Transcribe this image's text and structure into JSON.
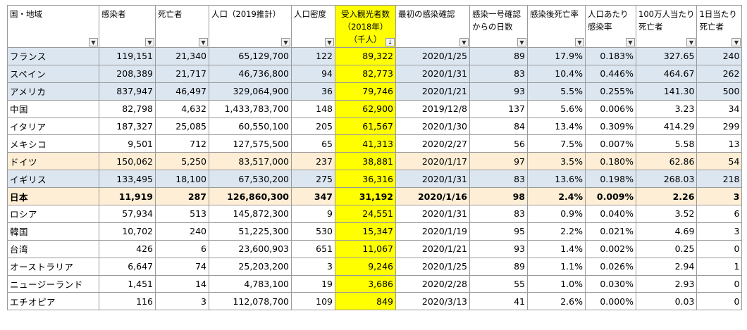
{
  "headers": [
    {
      "label": "国・地域",
      "filter": "▼"
    },
    {
      "label": "感染者",
      "filter": "▼"
    },
    {
      "label": "死亡者",
      "filter": "▼"
    },
    {
      "label": "人口（2019推計）",
      "filter": "▼"
    },
    {
      "label": "人口密度",
      "filter": "▼"
    },
    {
      "label": "受入観光者数\n（2018年）\n（千人）",
      "filter": "↓",
      "highlight": true
    },
    {
      "label": "最初の感染確認",
      "filter": "▼"
    },
    {
      "label": "感染一号確認\nからの日数",
      "filter": "▼"
    },
    {
      "label": "感染後死亡率",
      "filter": "▼"
    },
    {
      "label": "人口あたり\n感染率",
      "filter": "▼"
    },
    {
      "label": "100万人当たり\n死亡者",
      "filter": "▼"
    },
    {
      "label": "1日当たり\n死亡者",
      "filter": "▼"
    }
  ],
  "rows": [
    {
      "style": "blue",
      "cells": [
        "フランス",
        "119,151",
        "21,340",
        "65,129,700",
        "122",
        "89,322",
        "2020/1/25",
        "89",
        "17.9%",
        "0.183%",
        "327.65",
        "240"
      ]
    },
    {
      "style": "blue",
      "cells": [
        "スペイン",
        "208,389",
        "21,717",
        "46,736,800",
        "94",
        "82,773",
        "2020/1/31",
        "83",
        "10.4%",
        "0.446%",
        "464.67",
        "262"
      ]
    },
    {
      "style": "blue",
      "cells": [
        "アメリカ",
        "837,947",
        "46,497",
        "329,064,900",
        "36",
        "79,746",
        "2020/1/21",
        "93",
        "5.5%",
        "0.255%",
        "141.30",
        "500"
      ]
    },
    {
      "style": "",
      "cells": [
        "中国",
        "82,798",
        "4,632",
        "1,433,783,700",
        "148",
        "62,900",
        "2019/12/8",
        "137",
        "5.6%",
        "0.006%",
        "3.23",
        "34"
      ]
    },
    {
      "style": "",
      "cells": [
        "イタリア",
        "187,327",
        "25,085",
        "60,550,100",
        "205",
        "61,567",
        "2020/1/30",
        "84",
        "13.4%",
        "0.309%",
        "414.29",
        "299"
      ]
    },
    {
      "style": "",
      "cells": [
        "メキシコ",
        "9,501",
        "712",
        "127,575,500",
        "65",
        "41,313",
        "2020/2/27",
        "56",
        "7.5%",
        "0.007%",
        "5.58",
        "13"
      ]
    },
    {
      "style": "tan",
      "cells": [
        "ドイツ",
        "150,062",
        "5,250",
        "83,517,000",
        "237",
        "38,881",
        "2020/1/17",
        "97",
        "3.5%",
        "0.180%",
        "62.86",
        "54"
      ]
    },
    {
      "style": "blue",
      "cells": [
        "イギリス",
        "133,495",
        "18,100",
        "67,530,200",
        "275",
        "36,316",
        "2020/1/31",
        "83",
        "13.6%",
        "0.198%",
        "268.03",
        "218"
      ]
    },
    {
      "style": "bold",
      "cells": [
        "日本",
        "11,919",
        "287",
        "126,860,300",
        "347",
        "31,192",
        "2020/1/16",
        "98",
        "2.4%",
        "0.009%",
        "2.26",
        "3"
      ]
    },
    {
      "style": "",
      "cells": [
        "ロシア",
        "57,934",
        "513",
        "145,872,300",
        "9",
        "24,551",
        "2020/1/31",
        "83",
        "0.9%",
        "0.040%",
        "3.52",
        "6"
      ]
    },
    {
      "style": "",
      "cells": [
        "韓国",
        "10,702",
        "240",
        "51,225,300",
        "530",
        "15,347",
        "2020/1/19",
        "95",
        "2.2%",
        "0.021%",
        "4.69",
        "3"
      ]
    },
    {
      "style": "",
      "cells": [
        "台湾",
        "426",
        "6",
        "23,600,903",
        "651",
        "11,067",
        "2020/1/21",
        "93",
        "1.4%",
        "0.002%",
        "0.25",
        "0"
      ]
    },
    {
      "style": "",
      "cells": [
        "オーストラリア",
        "6,647",
        "74",
        "25,203,200",
        "3",
        "9,246",
        "2020/1/25",
        "89",
        "1.1%",
        "0.026%",
        "2.94",
        "1"
      ]
    },
    {
      "style": "",
      "cells": [
        "ニュージーランド",
        "1,451",
        "14",
        "4,783,100",
        "19",
        "3,686",
        "2020/2/28",
        "55",
        "1.0%",
        "0.030%",
        "2.93",
        "0"
      ]
    },
    {
      "style": "",
      "cells": [
        "エチオピア",
        "116",
        "3",
        "112,078,700",
        "109",
        "849",
        "2020/3/13",
        "41",
        "2.6%",
        "0.000%",
        "0.03",
        "0"
      ]
    }
  ],
  "colors": {
    "row_blue": "#dce6f1",
    "row_tan": "#fdeed5",
    "highlight": "#ffff00",
    "grid": "#9a9a9a"
  }
}
